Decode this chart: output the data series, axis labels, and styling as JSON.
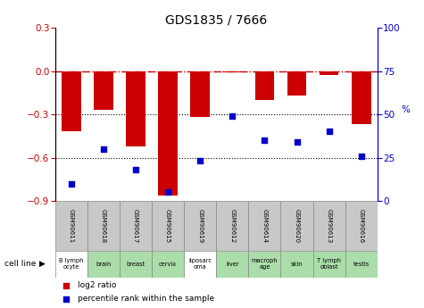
{
  "title": "GDS1835 / 7666",
  "gsm_labels": [
    "GSM90611",
    "GSM90618",
    "GSM90617",
    "GSM90615",
    "GSM90619",
    "GSM90612",
    "GSM90614",
    "GSM90620",
    "GSM90613",
    "GSM90616"
  ],
  "cell_lines": [
    "B lymph\nocyte",
    "brain",
    "breast",
    "cervix",
    "liposarc\noma",
    "liver",
    "macroph\nage",
    "skin",
    "T lymph\noblast",
    "testis"
  ],
  "cell_bg": [
    "#ffffff",
    "#aaddaa",
    "#aaddaa",
    "#aaddaa",
    "#ffffff",
    "#aaddaa",
    "#aaddaa",
    "#aaddaa",
    "#aaddaa",
    "#aaddaa"
  ],
  "log2_ratio": [
    -0.42,
    -0.27,
    -0.52,
    -0.865,
    -0.32,
    -0.01,
    -0.2,
    -0.17,
    -0.03,
    -0.37
  ],
  "percentile_rank": [
    10,
    30,
    18,
    5,
    23,
    49,
    35,
    34,
    40,
    26
  ],
  "ylim_left": [
    -0.9,
    0.3
  ],
  "ylim_right": [
    0,
    100
  ],
  "yticks_left": [
    -0.9,
    -0.6,
    -0.3,
    0.0,
    0.3
  ],
  "yticks_right": [
    0,
    25,
    50,
    75,
    100
  ],
  "bar_color": "#cc0000",
  "dot_color": "#0000cc",
  "hline_y": 0.0,
  "dotted_lines": [
    -0.3,
    -0.6
  ],
  "bar_width": 0.6,
  "gsm_box_color": "#c8c8c8",
  "legend_bar_label": "log2 ratio",
  "legend_dot_label": "percentile rank within the sample",
  "cell_line_label": "cell line"
}
